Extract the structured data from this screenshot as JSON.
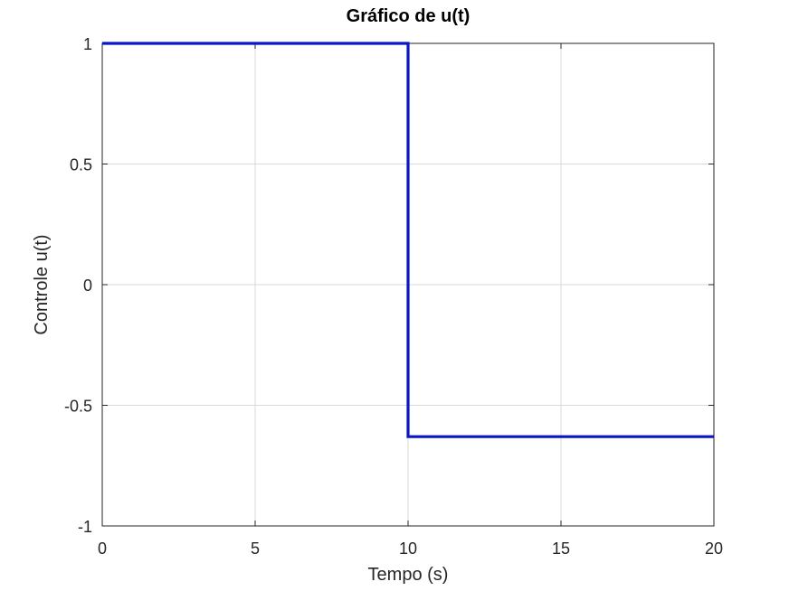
{
  "chart_data": {
    "type": "line",
    "title": "Gráfico de u(t)",
    "xlabel": "Tempo (s)",
    "ylabel": "Controle u(t)",
    "xlim": [
      0,
      20
    ],
    "ylim": [
      -1,
      1
    ],
    "xticks": [
      0,
      5,
      10,
      15,
      20
    ],
    "xtick_labels": [
      "0",
      "5",
      "10",
      "15",
      "20"
    ],
    "yticks": [
      -1,
      -0.5,
      0,
      0.5,
      1
    ],
    "ytick_labels": [
      "-1",
      "-0.5",
      "0",
      "0.5",
      "1"
    ],
    "grid": true,
    "series": [
      {
        "color": "#0a15c8",
        "x": [
          0,
          10,
          10,
          20
        ],
        "y": [
          1,
          1,
          -0.63,
          -0.63
        ]
      }
    ]
  }
}
